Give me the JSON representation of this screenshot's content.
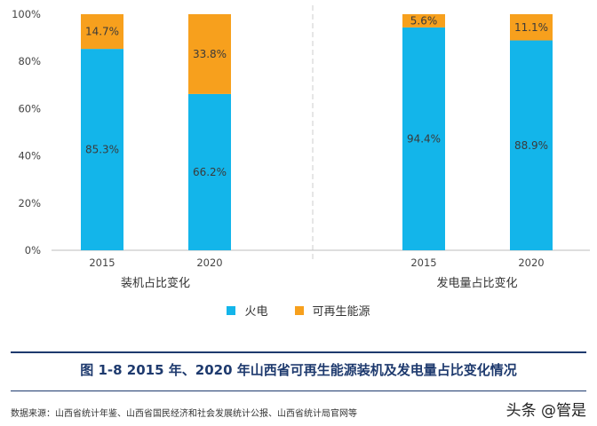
{
  "chart_data": {
    "type": "bar",
    "stacked": true,
    "y_ticks": [
      "0%",
      "20%",
      "40%",
      "60%",
      "80%",
      "100%"
    ],
    "ylim": [
      0,
      100
    ],
    "colors": {
      "thermal": "#13b5ea",
      "renewable": "#f7a01d"
    },
    "legend": {
      "thermal": "火电",
      "renewable": "可再生能源",
      "position": "bottom"
    },
    "groups": [
      {
        "label": "装机占比变化",
        "categories": [
          "2015",
          "2020"
        ],
        "series": [
          {
            "name": "火电",
            "values": [
              85.3,
              66.2
            ],
            "labels": [
              "85.3%",
              "66.2%"
            ]
          },
          {
            "name": "可再生能源",
            "values": [
              14.7,
              33.8
            ],
            "labels": [
              "14.7%",
              "33.8%"
            ]
          }
        ]
      },
      {
        "label": "发电量占比变化",
        "categories": [
          "2015",
          "2020"
        ],
        "series": [
          {
            "name": "火电",
            "values": [
              94.4,
              88.9
            ],
            "labels": [
              "94.4%",
              "88.9%"
            ]
          },
          {
            "name": "可再生能源",
            "values": [
              5.6,
              11.1
            ],
            "labels": [
              "5.6%",
              "11.1%"
            ]
          }
        ]
      }
    ]
  },
  "figure": {
    "title": "图 1-8  2015 年、2020 年山西省可再生能源装机及发电量占比变化情况",
    "source": "数据来源：山西省统计年鉴、山西省国民经济和社会发展统计公报、山西省统计局官网等",
    "watermark": "头条 @管是"
  }
}
